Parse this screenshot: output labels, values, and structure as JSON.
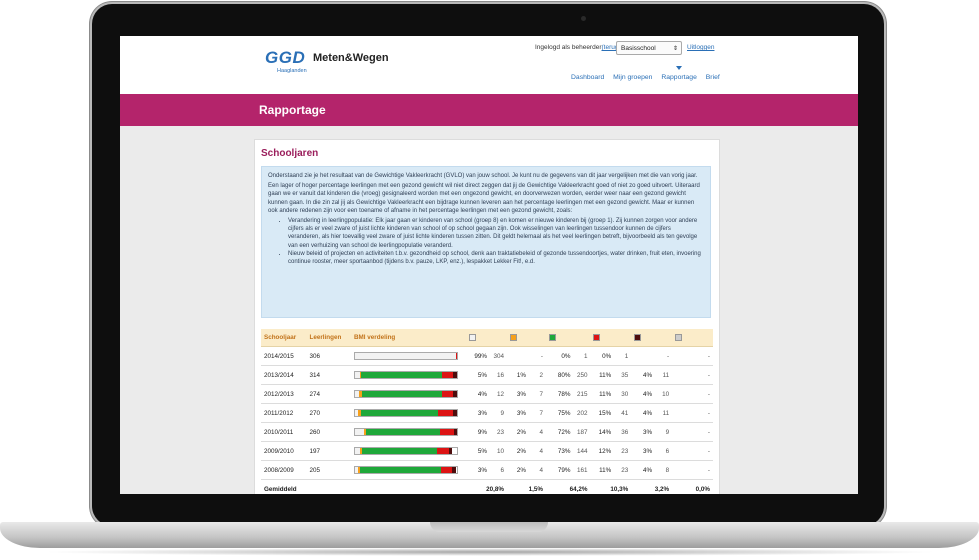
{
  "header": {
    "logo_ggd": "GGD",
    "logo_sub": "Haaglanden",
    "app_name": "Meten&Wegen",
    "login_prefix": "Ingelogd als beheerder",
    "login_back": "(terug)",
    "school_select": "Basisschool",
    "logout": "Uitloggen"
  },
  "nav": [
    {
      "label": "Dashboard"
    },
    {
      "label": "Mijn groepen"
    },
    {
      "label": "Rapportage"
    },
    {
      "label": "Brief"
    }
  ],
  "banner": {
    "title": "Rapportage"
  },
  "card": {
    "title": "Schooljaren",
    "intro": [
      "Onderstaand zie je het resultaat van de Gewichtige Vakleerkracht (GVLO) van jouw school. Je kunt nu de gegevens van dit jaar vergelijken met die van vorig jaar.",
      "Een lager of hoger percentage leerlingen met een gezond gewicht wil niet direct zeggen dat jij de Gewichtige Vakleerkracht goed of niet zo goed uitvoert. Uiteraard gaan we er vanuit dat kinderen die (vroeg) gesignaleerd worden met een ongezond gewicht, en doorverwezen worden, eerder weer naar een gezond gewicht kunnen gaan. In die zin zal jij als Gewichtige Vakleerkracht een bijdrage kunnen leveren aan het percentage leerlingen met een gezond gewicht. Maar er kunnen ook andere redenen zijn voor een toename of afname in het percentage leerlingen met een gezond gewicht, zoals:"
    ],
    "bullets": [
      "Verandering in leerlingpopulatie: Elk jaar gaan er kinderen van school (groep 8) en komen er nieuwe kinderen bij (groep 1). Zij kunnen zorgen voor andere cijfers als er veel zware of juist lichte kinderen van school of op school gegaan zijn. Ook wisselingen van leerlingen tussendoor kunnen de cijfers veranderen, als hier toevallig veel zware of juist lichte kinderen tussen zitten. Dit geldt helemaal als het veel leerlingen betreft, bijvoorbeeld als ten gevolge van een verhuizing van school de leerlingpopulatie veranderd.",
      "Nieuw beleid of projecten en activiteiten t.b.v. gezondheid op school, denk aan traktatiebeleid of gezonde tussendoortjes, water drinken, fruit eten, invoering continue rooster, meer sportaanbod (tijdens b.v. pauze, LKP, enz.), lespakket Lekker Fit!, e.d."
    ]
  },
  "table": {
    "headers": {
      "year": "Schooljaar",
      "students": "Leerlingen",
      "bmi": "BMI verdeling"
    },
    "category_colors": [
      "#f2f2f2",
      "#f6a01a",
      "#1fa83a",
      "#dd1414",
      "#4e0d0d",
      "#cccccc"
    ],
    "rows": [
      {
        "year": "2014/2015",
        "students": "306",
        "dist": [
          99,
          0,
          0,
          1,
          0,
          0
        ],
        "p1": "99%",
        "n1": "304",
        "p2": "",
        "n2": "-",
        "p3": "0%",
        "n3": "1",
        "p4": "0%",
        "n4": "1",
        "p5": "",
        "n5": "-",
        "p6": "",
        "n6": "-"
      },
      {
        "year": "2013/2014",
        "students": "314",
        "dist": [
          5,
          1,
          80,
          11,
          4,
          0
        ],
        "p1": "5%",
        "n1": "16",
        "p2": "1%",
        "n2": "2",
        "p3": "80%",
        "n3": "250",
        "p4": "11%",
        "n4": "35",
        "p5": "4%",
        "n5": "11",
        "p6": "",
        "n6": "-"
      },
      {
        "year": "2012/2013",
        "students": "274",
        "dist": [
          4,
          3,
          78,
          11,
          4,
          0
        ],
        "p1": "4%",
        "n1": "12",
        "p2": "3%",
        "n2": "7",
        "p3": "78%",
        "n3": "215",
        "p4": "11%",
        "n4": "30",
        "p5": "4%",
        "n5": "10",
        "p6": "",
        "n6": "-"
      },
      {
        "year": "2011/2012",
        "students": "270",
        "dist": [
          3,
          3,
          75,
          15,
          4,
          0
        ],
        "p1": "3%",
        "n1": "9",
        "p2": "3%",
        "n2": "7",
        "p3": "75%",
        "n3": "202",
        "p4": "15%",
        "n4": "41",
        "p5": "4%",
        "n5": "11",
        "p6": "",
        "n6": "-"
      },
      {
        "year": "2010/2011",
        "students": "260",
        "dist": [
          9,
          2,
          72,
          14,
          3,
          0
        ],
        "p1": "9%",
        "n1": "23",
        "p2": "2%",
        "n2": "4",
        "p3": "72%",
        "n3": "187",
        "p4": "14%",
        "n4": "36",
        "p5": "3%",
        "n5": "9",
        "p6": "",
        "n6": "-"
      },
      {
        "year": "2009/2010",
        "students": "197",
        "dist": [
          5,
          2,
          73,
          12,
          3,
          0
        ],
        "p1": "5%",
        "n1": "10",
        "p2": "2%",
        "n2": "4",
        "p3": "73%",
        "n3": "144",
        "p4": "12%",
        "n4": "23",
        "p5": "3%",
        "n5": "6",
        "p6": "",
        "n6": "-"
      },
      {
        "year": "2008/2009",
        "students": "205",
        "dist": [
          3,
          2,
          79,
          11,
          4,
          0
        ],
        "p1": "3%",
        "n1": "6",
        "p2": "2%",
        "n2": "4",
        "p3": "79%",
        "n3": "161",
        "p4": "11%",
        "n4": "23",
        "p5": "4%",
        "n5": "8",
        "p6": "",
        "n6": "-"
      }
    ],
    "average": {
      "label": "Gemiddeld",
      "p1": "20,8%",
      "p2": "1,5%",
      "p3": "64,2%",
      "p4": "10,3%",
      "p5": "3,2%",
      "p6": "0,0%"
    }
  }
}
